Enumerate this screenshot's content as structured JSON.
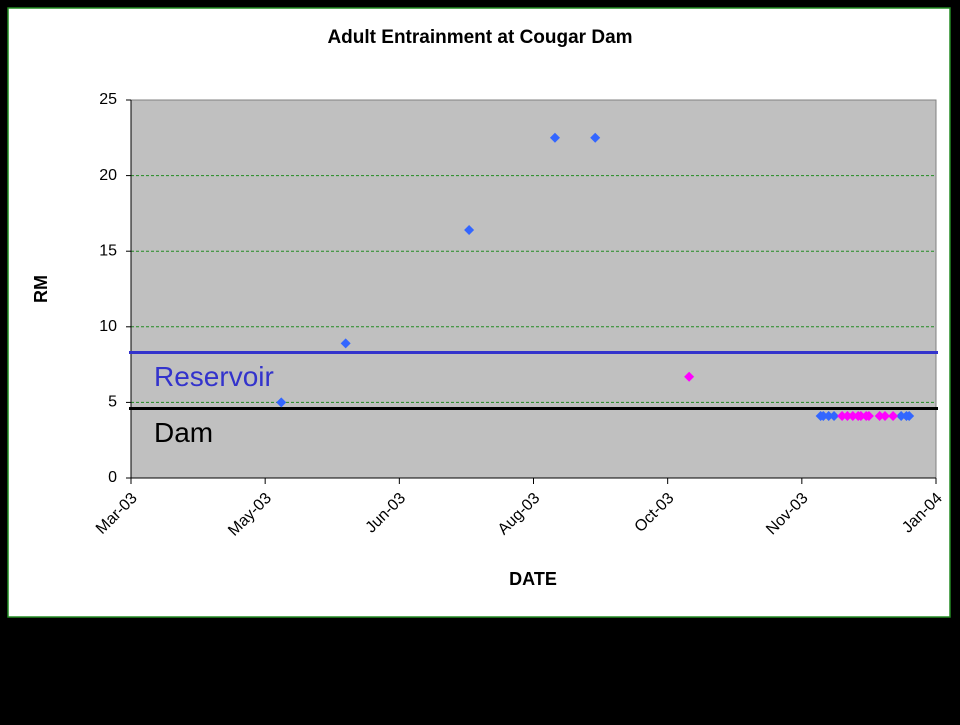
{
  "chart_data": {
    "type": "scatter",
    "title": "Adult Entrainment at Cougar Dam",
    "xlabel": "DATE",
    "ylabel": "RM",
    "xlim": [
      37695,
      37995
    ],
    "xticks": [
      {
        "value": 37695,
        "label": "Mar-03"
      },
      {
        "value": 37745,
        "label": "May-03"
      },
      {
        "value": 37795,
        "label": "Jun-03"
      },
      {
        "value": 37845,
        "label": "Aug-03"
      },
      {
        "value": 37895,
        "label": "Oct-03"
      },
      {
        "value": 37945,
        "label": "Nov-03"
      },
      {
        "value": 37995,
        "label": "Jan-04"
      }
    ],
    "ylim": [
      0,
      25
    ],
    "yticks": [
      0,
      5,
      10,
      15,
      20,
      25
    ],
    "grid": true,
    "series": [
      {
        "color": "#3366ff",
        "x": [
          37751,
          37775,
          37821,
          37853,
          37868,
          37952,
          37953,
          37955,
          37957,
          37982,
          37984,
          37985
        ],
        "values": [
          5,
          8.9,
          16.4,
          22.5,
          22.5,
          4.1,
          4.1,
          4.1,
          4.1,
          4.1,
          4.1,
          4.1
        ]
      },
      {
        "color": "#ff00ff",
        "x": [
          37903,
          37960,
          37962,
          37964,
          37966,
          37967,
          37969,
          37970,
          37974,
          37976,
          37979
        ],
        "values": [
          6.7,
          4.1,
          4.1,
          4.1,
          4.1,
          4.1,
          4.1,
          4.1,
          4.1,
          4.1,
          4.1
        ]
      }
    ],
    "reference_lines": [
      {
        "label": "Reservoir",
        "value": 8.3,
        "color": "#3333cc"
      },
      {
        "label": "Dam",
        "value": 4.6,
        "color": "#000000"
      }
    ]
  }
}
